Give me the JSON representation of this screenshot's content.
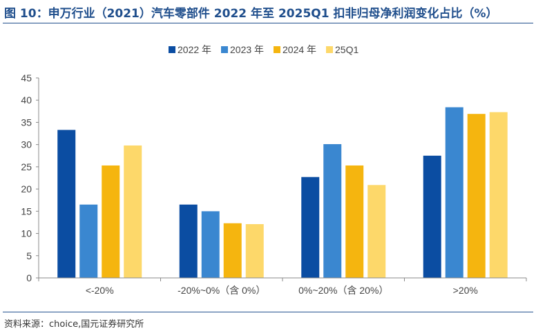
{
  "figure": {
    "title": "图 10：申万行业（2021）汽车零部件 2022 年至 2025Q1 扣非归母净利润变化占比（%）",
    "source": "资料来源：choice,国元证券研究所"
  },
  "chart_data": {
    "type": "bar",
    "title": "",
    "xlabel": "",
    "ylabel": "",
    "categories": [
      "<-20%",
      "-20%~0%（含 0%）",
      "0%~20%（含 20%）",
      ">20%"
    ],
    "series": [
      {
        "name": "2022 年",
        "color": "#0b4da2",
        "values": [
          33.3,
          16.5,
          22.7,
          27.5
        ]
      },
      {
        "name": "2023 年",
        "color": "#3a87d0",
        "values": [
          16.5,
          15.0,
          30.1,
          38.4
        ]
      },
      {
        "name": "2024 年",
        "color": "#f5b50f",
        "values": [
          25.3,
          12.3,
          25.3,
          36.9
        ]
      },
      {
        "name": "25Q1",
        "color": "#fdd86a",
        "values": [
          29.8,
          12.1,
          20.9,
          37.3
        ]
      }
    ],
    "ylim": [
      0,
      45
    ],
    "yticks": [
      0,
      5,
      10,
      15,
      20,
      25,
      30,
      35,
      40,
      45
    ],
    "grid": false,
    "legend": "top-center"
  }
}
